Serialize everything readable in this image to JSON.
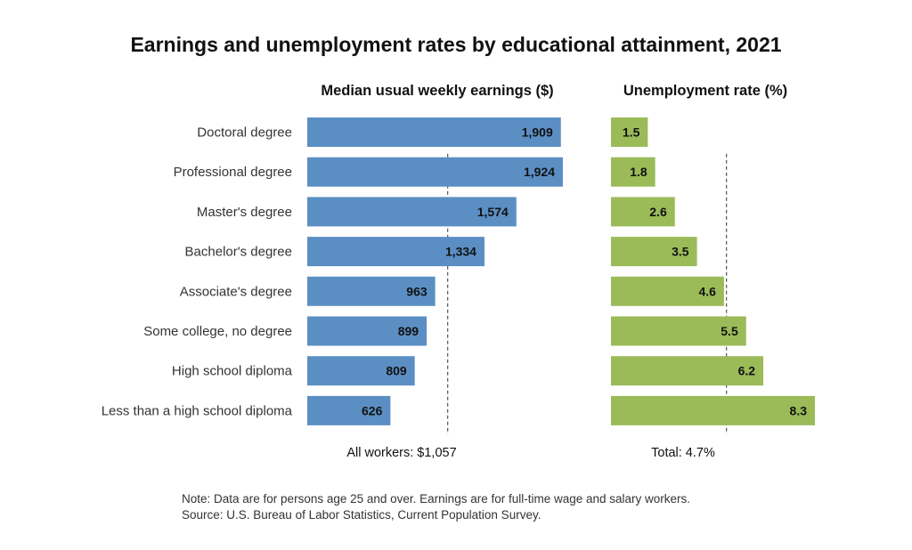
{
  "title": "Earnings and unemployment rates by educational attainment, 2021",
  "notes": [
    "Note: Data are for persons age 25 and over. Earnings are for full-time wage and salary workers.",
    "Source: U.S. Bureau of Labor Statistics, Current Population Survey."
  ],
  "colors": {
    "earnings_bar": "#5b8fc4",
    "unemployment_bar": "#9bbb59",
    "reference_line": "#555555"
  },
  "chart_data": [
    {
      "type": "bar",
      "orientation": "horizontal",
      "title": "Median usual weekly earnings ($)",
      "categories": [
        "Doctoral degree",
        "Professional degree",
        "Master's degree",
        "Bachelor's degree",
        "Associate's degree",
        "Some college, no degree",
        "High school diploma",
        "Less than a high school diploma"
      ],
      "values": [
        1909,
        1924,
        1574,
        1334,
        963,
        899,
        809,
        626
      ],
      "value_labels": [
        "1,909",
        "1,924",
        "1,574",
        "1,334",
        "963",
        "899",
        "809",
        "626"
      ],
      "reference": {
        "value": 1057,
        "label": "All workers: $1,057"
      },
      "xlim": [
        0,
        1924
      ]
    },
    {
      "type": "bar",
      "orientation": "horizontal",
      "title": "Unemployment rate (%)",
      "categories": [
        "Doctoral degree",
        "Professional degree",
        "Master's degree",
        "Bachelor's degree",
        "Associate's degree",
        "Some college, no degree",
        "High school diploma",
        "Less than a high school diploma"
      ],
      "values": [
        1.5,
        1.8,
        2.6,
        3.5,
        4.6,
        5.5,
        6.2,
        8.3
      ],
      "value_labels": [
        "1.5",
        "1.8",
        "2.6",
        "3.5",
        "4.6",
        "5.5",
        "6.2",
        "8.3"
      ],
      "reference": {
        "value": 4.7,
        "label": "Total: 4.7%"
      },
      "xlim": [
        0,
        8.3
      ]
    }
  ]
}
